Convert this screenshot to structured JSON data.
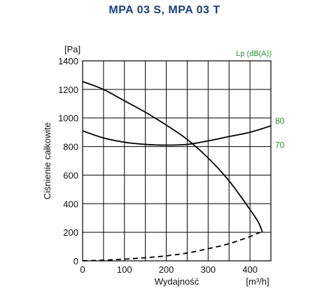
{
  "chart_data": {
    "type": "line",
    "title": "MPA 03 S, MPA 03 T",
    "xlabel": "Wydajność",
    "xunit": "[m³/h]",
    "ylabel": "Ciśnienie całkowite",
    "yunit": "[Pa]",
    "xlim": [
      0,
      450
    ],
    "ylim": [
      0,
      1400
    ],
    "x_ticks": [
      0,
      100,
      200,
      300,
      400
    ],
    "y_ticks": [
      0,
      200,
      400,
      600,
      800,
      1000,
      1200,
      1400
    ],
    "grid": true,
    "right_axis_title": "Lp (dB(A))",
    "right_labels": [
      {
        "text": "80",
        "y": 980
      },
      {
        "text": "70",
        "y": 810
      }
    ],
    "series": [
      {
        "style": "solid",
        "x": [
          0,
          50,
          100,
          150,
          200,
          250,
          300,
          350,
          400,
          420,
          430
        ],
        "y": [
          1255,
          1200,
          1120,
          1040,
          950,
          850,
          720,
          560,
          360,
          270,
          200
        ]
      },
      {
        "style": "solid",
        "x": [
          0,
          50,
          100,
          150,
          200,
          250,
          300,
          350,
          400,
          450
        ],
        "y": [
          910,
          860,
          830,
          815,
          810,
          815,
          840,
          870,
          900,
          945
        ]
      },
      {
        "style": "dashed",
        "x": [
          0,
          50,
          100,
          150,
          200,
          250,
          300,
          350,
          400,
          420,
          430
        ],
        "y": [
          0,
          5,
          12,
          22,
          35,
          55,
          85,
          120,
          170,
          195,
          200
        ]
      }
    ]
  }
}
